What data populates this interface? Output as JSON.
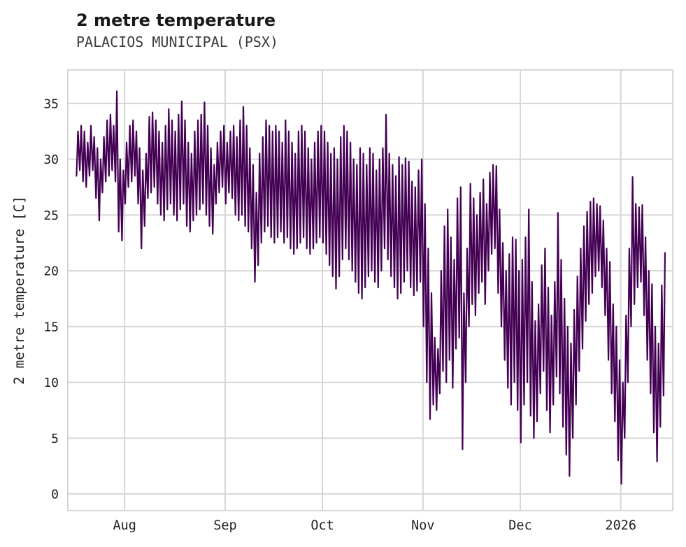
{
  "chart_data": {
    "type": "line",
    "title": "2 metre temperature",
    "subtitle": "PALACIOS MUNICIPAL (PSX)",
    "ylabel": "2 metre temperature [C]",
    "xlabel": "",
    "line_color": "#440154",
    "grid_color": "#d6d6d6",
    "grid": true,
    "legend": "none",
    "ylim": [
      -1.5,
      38
    ],
    "y_ticks": [
      0,
      5,
      10,
      15,
      20,
      25,
      30,
      35
    ],
    "x_unit": "day_index",
    "x_ticks": [
      {
        "day": 15,
        "label": "Aug"
      },
      {
        "day": 46,
        "label": "Sep"
      },
      {
        "day": 76,
        "label": "Oct"
      },
      {
        "day": 107,
        "label": "Nov"
      },
      {
        "day": 137,
        "label": "Dec"
      },
      {
        "day": 168,
        "label": "2026"
      }
    ],
    "sampling": "daily minimum and maximum temperature, mid-July through mid-January",
    "days": 182,
    "daily_min": [
      28.5,
      29,
      28,
      27.5,
      28.5,
      29,
      26.5,
      24.5,
      27,
      28,
      28.5,
      29,
      28,
      23.5,
      22.7,
      26,
      27.5,
      28,
      28.5,
      26,
      22,
      24,
      26.5,
      27,
      27.5,
      26,
      25,
      24.5,
      25.5,
      26,
      25,
      24.5,
      25.5,
      26,
      24,
      23.5,
      24.5,
      25,
      25.5,
      26,
      25,
      24,
      23.3,
      26,
      27,
      27.5,
      26,
      27,
      26.5,
      25,
      24.5,
      25,
      24,
      23.5,
      22,
      19,
      20.5,
      22.5,
      23.5,
      24,
      23,
      22.5,
      23,
      23.5,
      22.5,
      23,
      22,
      21.5,
      22,
      22.5,
      23,
      22,
      21.5,
      22,
      22.5,
      23,
      22.5,
      21.5,
      20.5,
      19.5,
      18.4,
      19.5,
      21,
      22,
      21,
      20,
      19,
      18,
      17.5,
      18.5,
      19.5,
      20,
      19,
      18.5,
      20,
      22,
      21,
      19.5,
      18.5,
      17.5,
      18,
      19,
      20,
      18.5,
      17.8,
      18.2,
      19,
      15,
      10,
      6.7,
      8,
      7.5,
      9,
      11,
      10,
      12,
      9.5,
      13,
      14,
      4,
      10,
      15,
      17,
      16,
      18,
      19,
      17,
      20,
      21.5,
      22,
      18,
      15,
      12,
      9.5,
      8,
      10,
      7.5,
      4.6,
      8,
      10,
      7,
      5,
      6.5,
      9,
      11,
      7.5,
      5.5,
      8,
      10.5,
      9,
      6,
      3.5,
      1.6,
      5,
      8,
      11,
      13,
      15.5,
      17,
      18,
      19.5,
      20,
      18.5,
      16,
      12,
      9,
      6.5,
      3,
      0.9,
      5,
      10,
      15,
      17,
      18.5,
      19,
      16,
      12,
      9,
      5.5,
      2.9,
      6,
      8.8
    ],
    "daily_max": [
      32.5,
      33,
      32.5,
      31.5,
      33,
      32,
      31,
      30,
      32,
      33.5,
      34,
      33,
      36.1,
      30,
      29,
      31.5,
      33,
      33.5,
      32.5,
      31,
      29,
      30.5,
      33.8,
      34.2,
      33.5,
      32.5,
      31.5,
      33,
      34.5,
      33.5,
      32.5,
      34,
      35.2,
      33.5,
      31.5,
      30.5,
      32.5,
      33.5,
      34,
      35.1,
      33,
      31,
      29.5,
      31.5,
      32.5,
      33,
      31.5,
      32.5,
      33,
      32,
      33.5,
      34.7,
      33,
      31,
      29.5,
      27,
      30.5,
      32,
      33.5,
      33,
      32.5,
      33,
      32.5,
      31.5,
      33.5,
      32.5,
      31.5,
      30.5,
      32.5,
      33,
      32.5,
      31,
      30,
      31.5,
      32.5,
      33,
      32.5,
      31.5,
      30.5,
      31,
      30,
      32,
      33,
      32.5,
      31.5,
      30,
      29.5,
      31,
      30.5,
      29.5,
      31,
      30.5,
      29,
      30,
      31,
      34,
      30.5,
      29.5,
      28.5,
      30.2,
      29.5,
      30.1,
      29.8,
      28,
      27.5,
      29,
      30,
      26,
      22,
      18,
      14,
      13,
      20,
      24,
      25.5,
      23,
      21,
      26.5,
      27.5,
      18,
      22,
      27.8,
      26.5,
      25,
      27,
      28.2,
      26,
      28.8,
      29.5,
      29.4,
      25.5,
      22.5,
      20,
      21.5,
      23,
      22.8,
      20,
      21,
      23,
      25.5,
      19,
      15.5,
      17,
      20.5,
      22,
      18.5,
      16,
      19,
      25.2,
      21,
      17.5,
      15,
      13.5,
      16.5,
      19.5,
      22,
      24,
      25.3,
      26.2,
      26.5,
      26,
      25.8,
      24.5,
      22,
      20.8,
      17,
      15,
      12,
      10,
      16,
      22,
      28.4,
      26,
      25.7,
      25.9,
      23,
      20,
      18.8,
      15,
      13.5,
      18.7,
      21.6
    ]
  }
}
